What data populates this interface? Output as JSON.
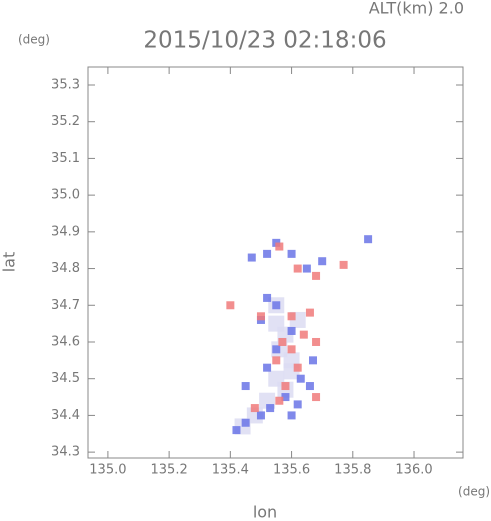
{
  "chart_data": {
    "type": "scatter",
    "altitude_label": "ALT(km) 2.0",
    "title": "2015/10/23 02:18:06",
    "y_unit": "(deg)",
    "x_unit": "(deg)",
    "x_label": "lon",
    "y_label": "lat",
    "xlim": [
      134.935,
      136.16
    ],
    "ylim": [
      34.284,
      35.349
    ],
    "xticks": [
      {
        "value": 135,
        "label": "135.0"
      },
      135.2,
      135.4,
      135.6,
      135.8,
      {
        "value": 136,
        "label": "136.0"
      }
    ],
    "yticks": [
      34.3,
      34.4,
      34.5,
      34.6,
      34.7,
      34.8,
      34.9,
      {
        "value": 35,
        "label": "35.0"
      },
      35.1,
      35.2,
      35.3
    ],
    "series": [
      {
        "color": "#dcdcf2",
        "x": [
          135.55,
          135.58,
          135.56,
          135.6,
          135.55,
          135.58,
          135.52,
          135.48,
          135.44,
          135.62,
          135.55,
          135.6
        ],
        "y": [
          34.65,
          34.62,
          34.58,
          34.55,
          34.5,
          34.47,
          34.44,
          34.4,
          34.37,
          34.66,
          34.7,
          34.52
        ]
      },
      {
        "color": "#6a74e6",
        "x": [
          135.55,
          135.52,
          135.6,
          135.47,
          135.65,
          135.52,
          135.55,
          135.5,
          135.6,
          135.55,
          135.67,
          135.52,
          135.63,
          135.66,
          135.45,
          135.58,
          135.62,
          135.53,
          135.5,
          135.6,
          135.45,
          135.42,
          135.85,
          135.7
        ],
        "y": [
          34.87,
          34.84,
          34.84,
          34.83,
          34.8,
          34.72,
          34.7,
          34.66,
          34.63,
          34.58,
          34.55,
          34.53,
          34.5,
          34.48,
          34.48,
          34.45,
          34.43,
          34.42,
          34.4,
          34.4,
          34.38,
          34.36,
          34.88,
          34.82
        ]
      },
      {
        "color": "#f07a7a",
        "x": [
          135.56,
          135.62,
          135.68,
          135.77,
          135.5,
          135.6,
          135.64,
          135.57,
          135.68,
          135.55,
          135.62,
          135.58,
          135.68,
          135.48,
          135.56,
          135.6,
          135.66,
          135.4
        ],
        "y": [
          34.86,
          34.8,
          34.78,
          34.81,
          34.67,
          34.67,
          34.62,
          34.6,
          34.6,
          34.55,
          34.53,
          34.48,
          34.45,
          34.42,
          34.44,
          34.58,
          34.68,
          34.7
        ]
      }
    ]
  }
}
